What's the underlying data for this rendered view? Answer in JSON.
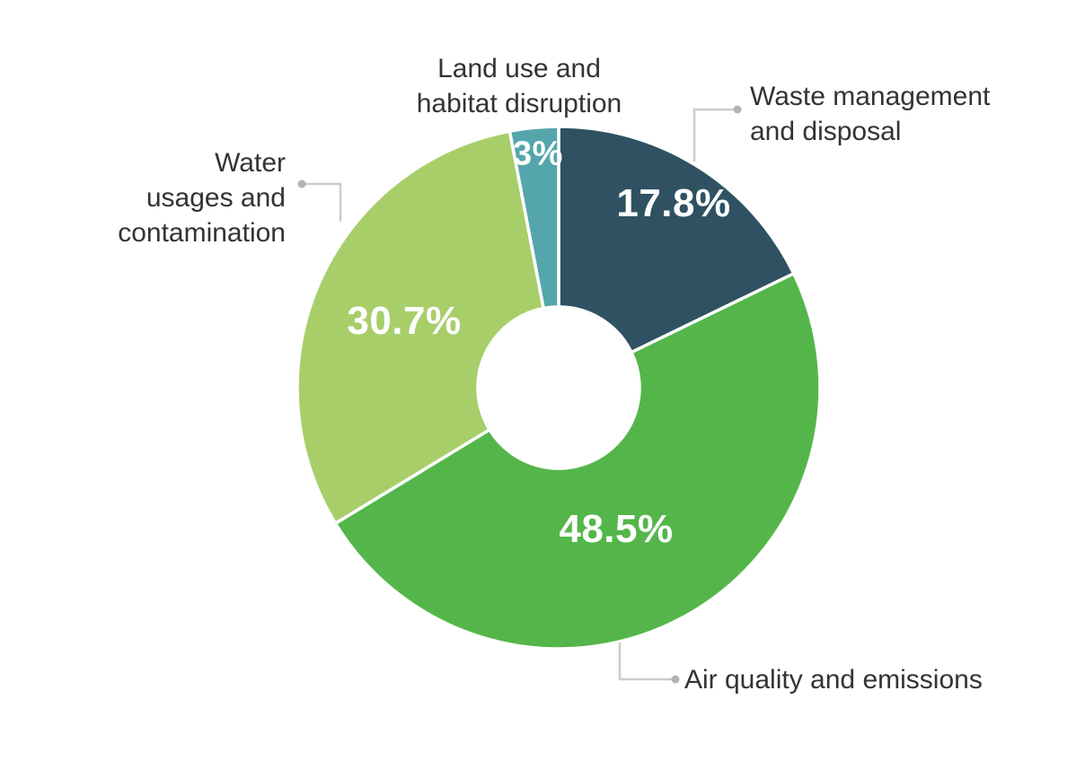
{
  "chart_data": {
    "type": "pie",
    "subtype": "donut",
    "title": "",
    "categories": [
      "Waste management and disposal",
      "Air quality and emissions",
      "Water usages and contamination",
      "Land use and habitat disruption"
    ],
    "values": [
      17.8,
      48.5,
      30.7,
      3.0
    ],
    "value_labels": [
      "17.8%",
      "48.5%",
      "30.7%",
      "3%"
    ],
    "colors": [
      "#2F5161",
      "#54B64A",
      "#A8CE6A",
      "#55A6AC"
    ],
    "start_angle_deg": 0,
    "direction": "clockwise",
    "inner_radius_ratio": 0.31,
    "slice_gap_color": "#FFFFFF",
    "background_color": "#FFFFFF",
    "legend_position": "none",
    "value_label_color": "#FFFFFF",
    "category_label_color": "#333333",
    "leader_line_color": "#CCCCCC",
    "leader_dot_color": "#B3B3B3"
  },
  "callouts": {
    "waste": {
      "lines": [
        "Waste management",
        "and disposal"
      ]
    },
    "air": {
      "lines": [
        "Air quality and emissions"
      ]
    },
    "water": {
      "lines": [
        "Water",
        "usages and",
        "contamination"
      ]
    },
    "land": {
      "lines": [
        "Land use and",
        "habitat disruption"
      ]
    }
  }
}
